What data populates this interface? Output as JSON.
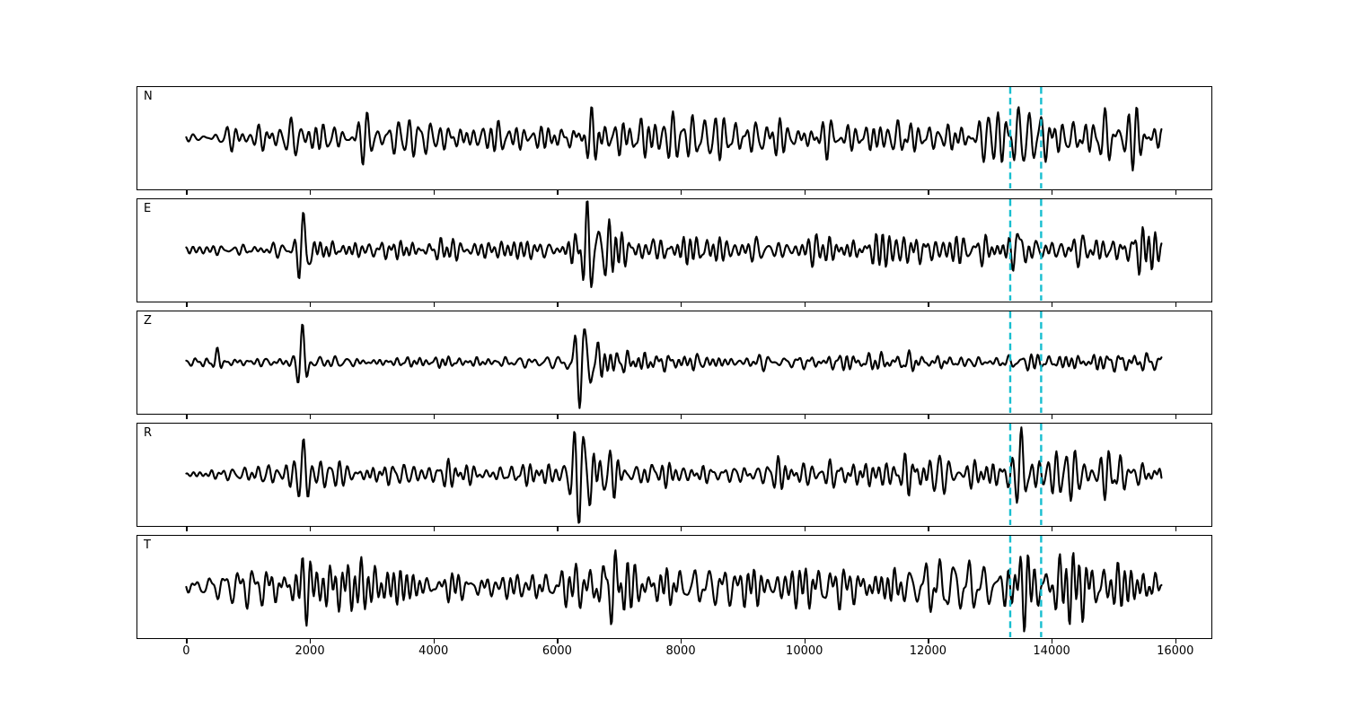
{
  "figure": {
    "background": "#ffffff",
    "trace_color": "#000000",
    "spine_color": "#000000"
  },
  "chart_data": {
    "type": "line",
    "subtype": "seismogram-multitrace",
    "title": "",
    "xlabel": "",
    "ylabel": "",
    "grid": false,
    "legend": null,
    "x_ticks": [
      0,
      2000,
      4000,
      6000,
      8000,
      10000,
      12000,
      14000,
      16000
    ],
    "xlim": [
      -790,
      16570
    ],
    "n_samples": 15780,
    "tick_labels_visible_on": "bottom-panel-only",
    "y_ticks": [],
    "trace_color": "#000000",
    "vlines": {
      "positions": [
        13330,
        13830
      ],
      "color": "#17becf",
      "linestyle": "dashed",
      "linewidth": 2.4
    },
    "panels": [
      {
        "label": "N",
        "envelope": [
          [
            0,
            0.07
          ],
          [
            400,
            0.12
          ],
          [
            900,
            0.3
          ],
          [
            1500,
            0.34
          ],
          [
            2100,
            0.38
          ],
          [
            2700,
            0.32
          ],
          [
            3500,
            0.3
          ],
          [
            4300,
            0.28
          ],
          [
            5200,
            0.3
          ],
          [
            6100,
            0.3
          ],
          [
            6450,
            0.5
          ],
          [
            6800,
            0.45
          ],
          [
            7300,
            0.42
          ],
          [
            7900,
            0.36
          ],
          [
            8700,
            0.32
          ],
          [
            9500,
            0.34
          ],
          [
            10300,
            0.32
          ],
          [
            11100,
            0.34
          ],
          [
            11900,
            0.33
          ],
          [
            12700,
            0.32
          ],
          [
            13300,
            0.45
          ],
          [
            13700,
            0.42
          ],
          [
            14200,
            0.5
          ],
          [
            14800,
            0.46
          ],
          [
            15300,
            0.52
          ],
          [
            15780,
            0.45
          ]
        ],
        "bursts": [
          {
            "x": 6550,
            "w": 160,
            "a": 0.4
          },
          {
            "x": 13450,
            "w": 110,
            "a": 0.62
          }
        ]
      },
      {
        "label": "E",
        "envelope": [
          [
            0,
            0.06
          ],
          [
            600,
            0.09
          ],
          [
            1200,
            0.16
          ],
          [
            1700,
            0.18
          ],
          [
            2200,
            0.22
          ],
          [
            3000,
            0.2
          ],
          [
            4000,
            0.19
          ],
          [
            5000,
            0.17
          ],
          [
            6000,
            0.18
          ],
          [
            6400,
            0.45
          ],
          [
            6900,
            0.42
          ],
          [
            7300,
            0.3
          ],
          [
            7900,
            0.28
          ],
          [
            8700,
            0.24
          ],
          [
            9500,
            0.22
          ],
          [
            10300,
            0.24
          ],
          [
            11100,
            0.22
          ],
          [
            11900,
            0.24
          ],
          [
            12700,
            0.23
          ],
          [
            13200,
            0.28
          ],
          [
            13700,
            0.32
          ],
          [
            14300,
            0.36
          ],
          [
            15000,
            0.33
          ],
          [
            15780,
            0.33
          ]
        ],
        "bursts": [
          {
            "x": 1900,
            "w": 75,
            "a": 0.68
          },
          {
            "x": 6480,
            "w": 170,
            "a": 0.5
          },
          {
            "x": 7560,
            "w": 65,
            "a": 0.33
          },
          {
            "x": 13470,
            "w": 65,
            "a": 0.62
          }
        ]
      },
      {
        "label": "Z",
        "envelope": [
          [
            0,
            0.05
          ],
          [
            350,
            0.09
          ],
          [
            800,
            0.08
          ],
          [
            1400,
            0.09
          ],
          [
            2000,
            0.12
          ],
          [
            2600,
            0.1
          ],
          [
            3400,
            0.1
          ],
          [
            4200,
            0.11
          ],
          [
            5000,
            0.11
          ],
          [
            6000,
            0.1
          ],
          [
            6450,
            0.42
          ],
          [
            6900,
            0.3
          ],
          [
            7400,
            0.18
          ],
          [
            8100,
            0.14
          ],
          [
            9000,
            0.12
          ],
          [
            9900,
            0.13
          ],
          [
            10800,
            0.15
          ],
          [
            11700,
            0.12
          ],
          [
            12600,
            0.13
          ],
          [
            13400,
            0.16
          ],
          [
            14100,
            0.14
          ],
          [
            15000,
            0.13
          ],
          [
            15780,
            0.15
          ]
        ],
        "bursts": [
          {
            "x": 500,
            "w": 55,
            "a": 0.32
          },
          {
            "x": 1880,
            "w": 65,
            "a": 0.85
          },
          {
            "x": 6450,
            "w": 150,
            "a": 0.6
          }
        ]
      },
      {
        "label": "R",
        "envelope": [
          [
            0,
            0.06
          ],
          [
            700,
            0.11
          ],
          [
            1300,
            0.2
          ],
          [
            2000,
            0.24
          ],
          [
            2700,
            0.24
          ],
          [
            3500,
            0.21
          ],
          [
            4400,
            0.2
          ],
          [
            5300,
            0.19
          ],
          [
            6100,
            0.22
          ],
          [
            6500,
            0.48
          ],
          [
            7000,
            0.45
          ],
          [
            7500,
            0.32
          ],
          [
            8100,
            0.28
          ],
          [
            8900,
            0.26
          ],
          [
            9800,
            0.26
          ],
          [
            10700,
            0.28
          ],
          [
            11600,
            0.3
          ],
          [
            12500,
            0.26
          ],
          [
            13200,
            0.28
          ],
          [
            13800,
            0.38
          ],
          [
            14400,
            0.42
          ],
          [
            15100,
            0.4
          ],
          [
            15780,
            0.34
          ]
        ],
        "bursts": [
          {
            "x": 1890,
            "w": 75,
            "a": 0.6
          },
          {
            "x": 6430,
            "w": 160,
            "a": 0.55
          },
          {
            "x": 7560,
            "w": 65,
            "a": 0.35
          },
          {
            "x": 13510,
            "w": 55,
            "a": 0.75
          }
        ]
      },
      {
        "label": "T",
        "envelope": [
          [
            0,
            0.09
          ],
          [
            600,
            0.22
          ],
          [
            1100,
            0.34
          ],
          [
            1600,
            0.4
          ],
          [
            2100,
            0.46
          ],
          [
            2700,
            0.4
          ],
          [
            3500,
            0.36
          ],
          [
            4400,
            0.33
          ],
          [
            5300,
            0.31
          ],
          [
            6200,
            0.4
          ],
          [
            6700,
            0.55
          ],
          [
            7100,
            0.6
          ],
          [
            7600,
            0.48
          ],
          [
            8200,
            0.44
          ],
          [
            9000,
            0.4
          ],
          [
            9900,
            0.42
          ],
          [
            10800,
            0.4
          ],
          [
            11700,
            0.42
          ],
          [
            12600,
            0.4
          ],
          [
            13200,
            0.42
          ],
          [
            13600,
            0.55
          ],
          [
            14100,
            0.48
          ],
          [
            14800,
            0.52
          ],
          [
            15400,
            0.5
          ],
          [
            15780,
            0.52
          ]
        ],
        "bursts": [
          {
            "x": 2030,
            "w": 110,
            "a": 0.38
          },
          {
            "x": 6950,
            "w": 190,
            "a": 0.42
          },
          {
            "x": 13470,
            "w": 85,
            "a": 0.55
          }
        ]
      }
    ]
  }
}
